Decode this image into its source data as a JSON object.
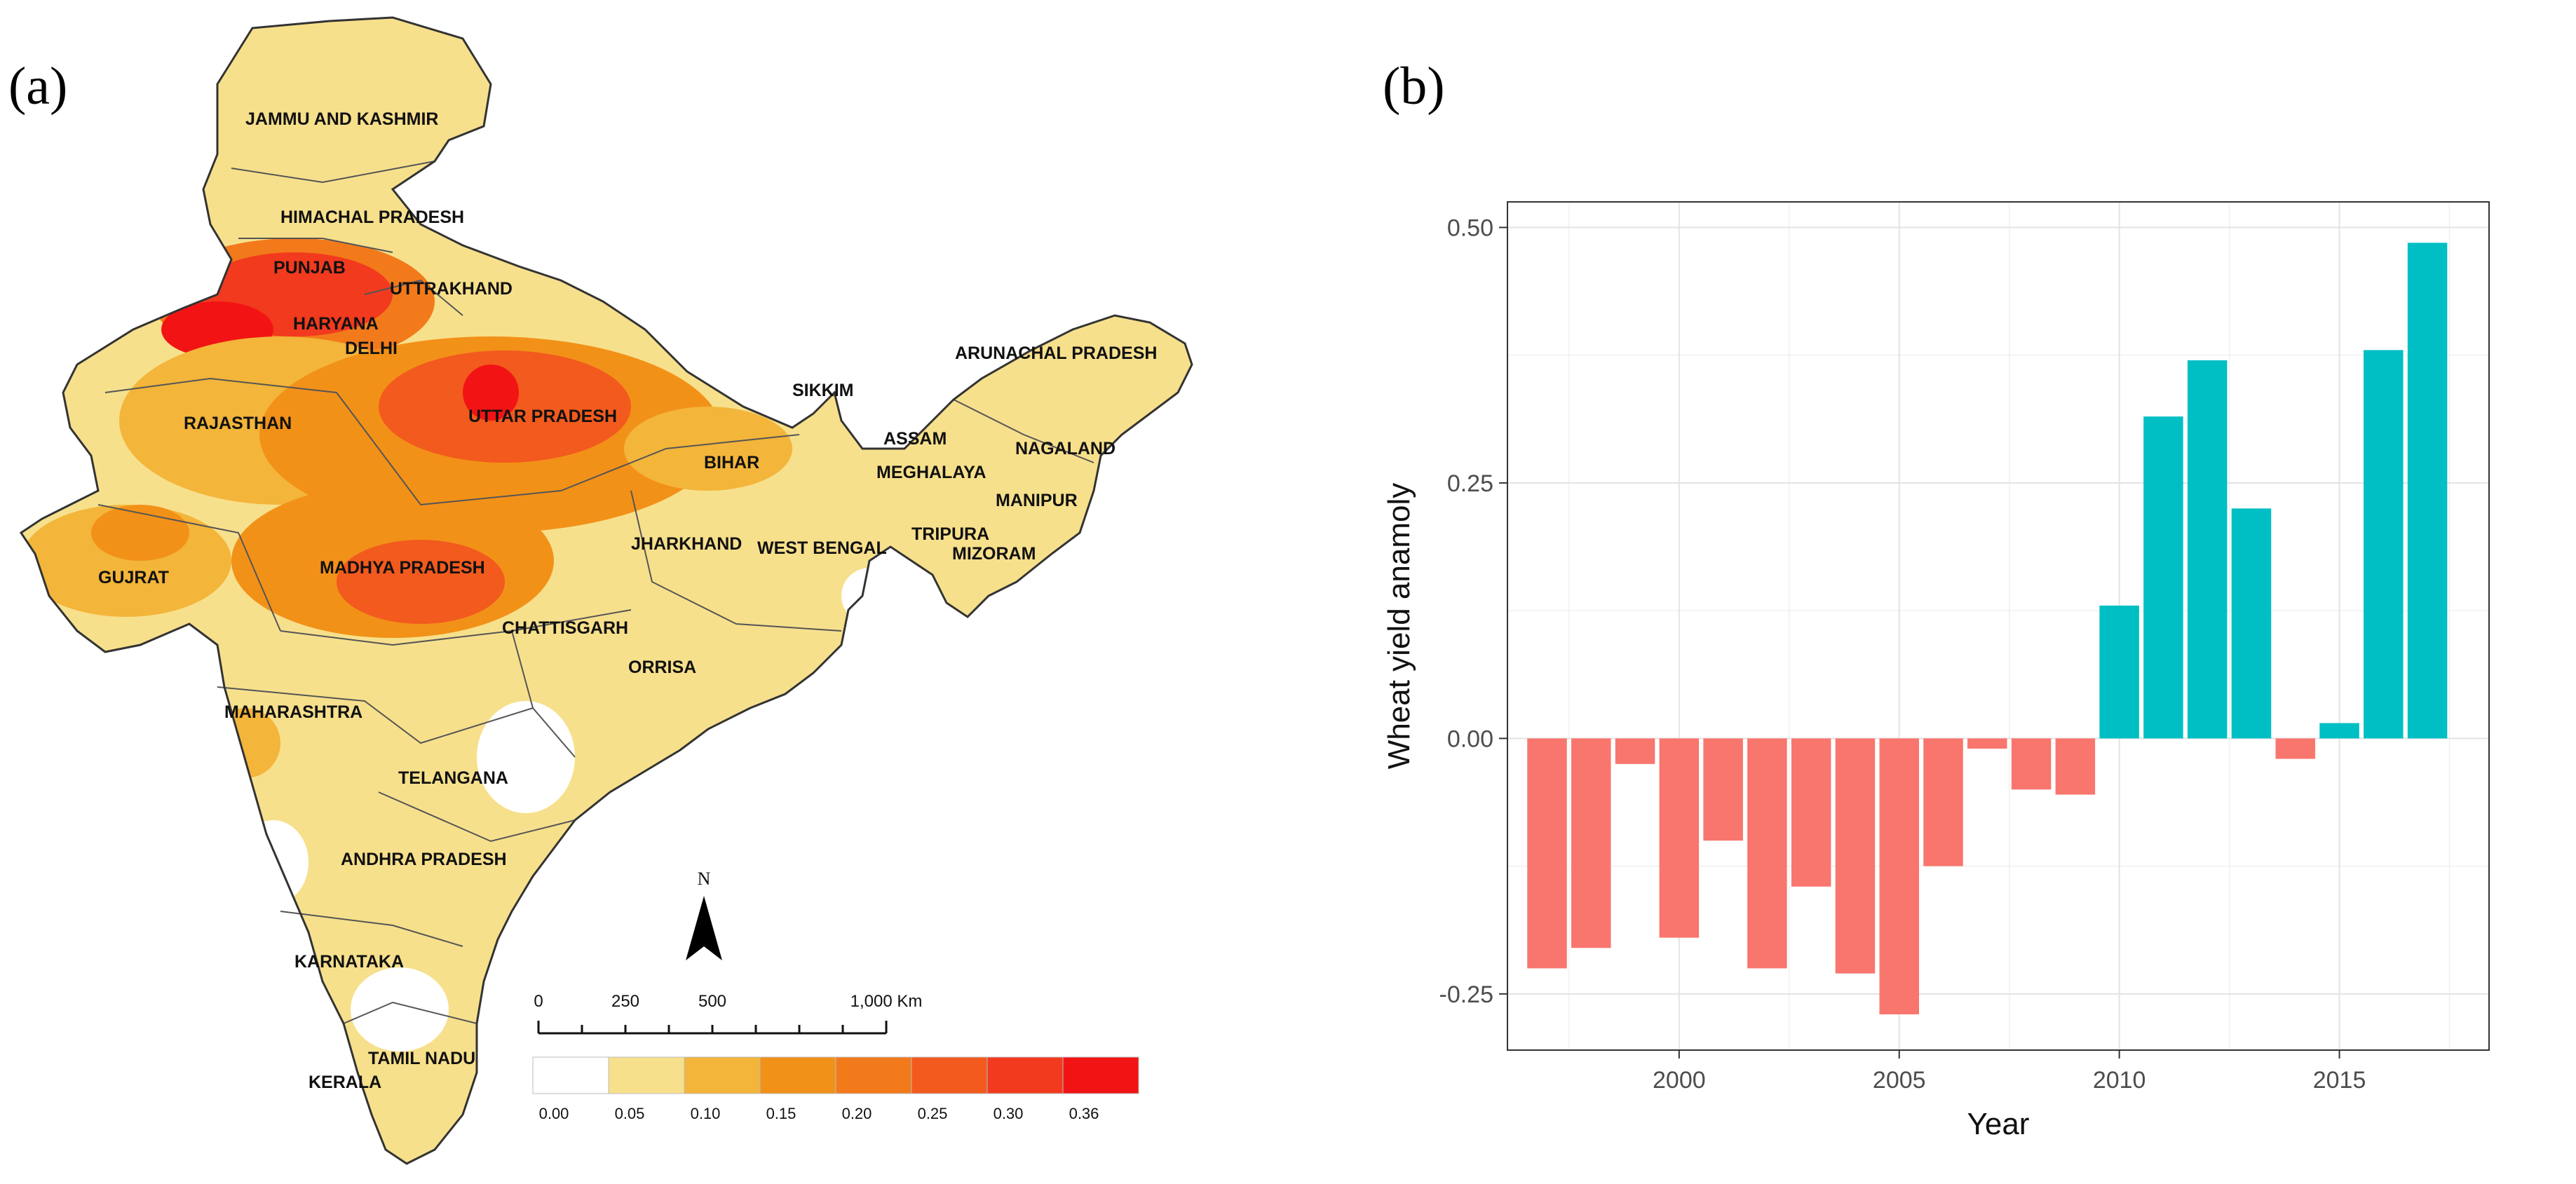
{
  "panels": {
    "a_label": "(a)",
    "b_label": "(b)"
  },
  "map": {
    "north_label": "N",
    "scale_labels": [
      "0",
      "250",
      "500",
      "1,000 Km"
    ],
    "legend": {
      "labels": [
        "0.00",
        "0.05",
        "0.10",
        "0.15",
        "0.20",
        "0.25",
        "0.30",
        "0.36"
      ],
      "colors": [
        "#ffffff",
        "#f7e08c",
        "#f3b53a",
        "#f29118",
        "#f27a1b",
        "#f25a1e",
        "#f23a1e",
        "#f21414"
      ]
    },
    "state_labels": [
      "JAMMU AND KASHMIR",
      "HIMACHAL PRADESH",
      "PUNJAB",
      "UTTRAKHAND",
      "HARYANA",
      "DELHI",
      "ARUNACHAL PRADESH",
      "SIKKIM",
      "RAJASTHAN",
      "UTTAR PRADESH",
      "ASSAM",
      "NAGALAND",
      "BIHAR",
      "MEGHALAYA",
      "MANIPUR",
      "JHARKHAND",
      "WEST BENGAL",
      "TRIPURA",
      "MIZORAM",
      "GUJRAT",
      "MADHYA PRADESH",
      "CHATTISGARH",
      "ORRISA",
      "MAHARASHTRA",
      "TELANGANA",
      "ANDHRA PRADESH",
      "KARNATAKA",
      "TAMIL NADU",
      "KERALA"
    ]
  },
  "chart_data": {
    "type": "bar",
    "xlabel": "Year",
    "ylabel": "Wheat yield anamoly",
    "x": [
      1997,
      1998,
      1999,
      2000,
      2001,
      2002,
      2003,
      2004,
      2005,
      2006,
      2007,
      2008,
      2009,
      2010,
      2011,
      2012,
      2013,
      2014,
      2015,
      2016,
      2017
    ],
    "values": [
      -0.225,
      -0.205,
      -0.025,
      -0.195,
      -0.1,
      -0.225,
      -0.145,
      -0.23,
      -0.27,
      -0.125,
      -0.01,
      -0.05,
      -0.055,
      0.13,
      0.315,
      0.37,
      0.225,
      -0.02,
      0.015,
      0.38,
      0.485
    ],
    "xticks": [
      2000,
      2005,
      2010,
      2015
    ],
    "xtick_labels": [
      "2000",
      "2005",
      "2010",
      "2015"
    ],
    "yticks": [
      -0.25,
      0,
      0.25,
      0.5
    ],
    "ytick_labels": [
      "-0.25",
      "0.00",
      "0.25",
      "0.50"
    ],
    "xlim": [
      1996.1,
      2018.4
    ],
    "ylim": [
      -0.305,
      0.525
    ],
    "positive_color": "#00bfc4",
    "negative_color": "#f8766d",
    "grid": true
  }
}
